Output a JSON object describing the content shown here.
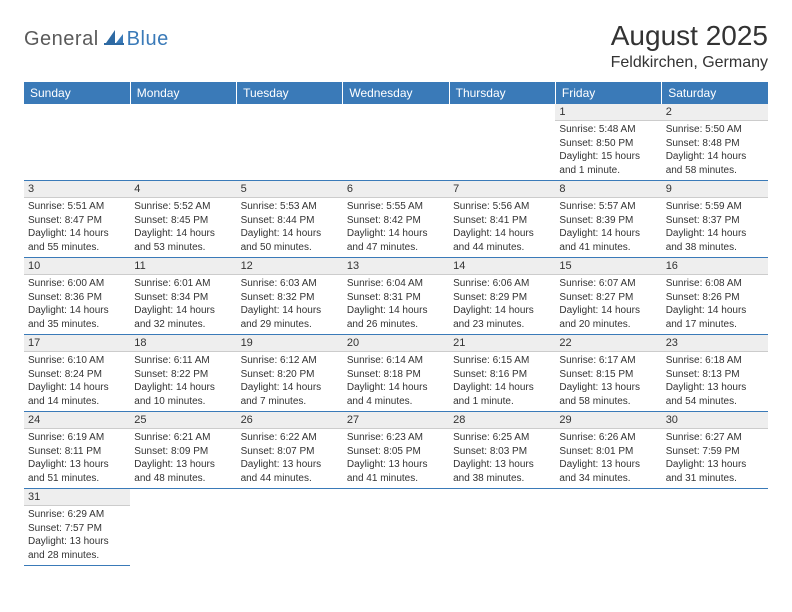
{
  "logo": {
    "general": "General",
    "blue": "Blue"
  },
  "title": "August 2025",
  "location": "Feldkirchen, Germany",
  "colors": {
    "header_bg": "#3a7ab8",
    "header_text": "#ffffff",
    "daynum_bg": "#eeeeee",
    "row_divider": "#3a7ab8",
    "text": "#333333",
    "logo_gray": "#5a5a5a",
    "logo_blue": "#3a7ab8"
  },
  "weekdays": [
    "Sunday",
    "Monday",
    "Tuesday",
    "Wednesday",
    "Thursday",
    "Friday",
    "Saturday"
  ],
  "first_weekday_index": 5,
  "days": [
    {
      "n": 1,
      "sunrise": "5:48 AM",
      "sunset": "8:50 PM",
      "daylight": "15 hours and 1 minute."
    },
    {
      "n": 2,
      "sunrise": "5:50 AM",
      "sunset": "8:48 PM",
      "daylight": "14 hours and 58 minutes."
    },
    {
      "n": 3,
      "sunrise": "5:51 AM",
      "sunset": "8:47 PM",
      "daylight": "14 hours and 55 minutes."
    },
    {
      "n": 4,
      "sunrise": "5:52 AM",
      "sunset": "8:45 PM",
      "daylight": "14 hours and 53 minutes."
    },
    {
      "n": 5,
      "sunrise": "5:53 AM",
      "sunset": "8:44 PM",
      "daylight": "14 hours and 50 minutes."
    },
    {
      "n": 6,
      "sunrise": "5:55 AM",
      "sunset": "8:42 PM",
      "daylight": "14 hours and 47 minutes."
    },
    {
      "n": 7,
      "sunrise": "5:56 AM",
      "sunset": "8:41 PM",
      "daylight": "14 hours and 44 minutes."
    },
    {
      "n": 8,
      "sunrise": "5:57 AM",
      "sunset": "8:39 PM",
      "daylight": "14 hours and 41 minutes."
    },
    {
      "n": 9,
      "sunrise": "5:59 AM",
      "sunset": "8:37 PM",
      "daylight": "14 hours and 38 minutes."
    },
    {
      "n": 10,
      "sunrise": "6:00 AM",
      "sunset": "8:36 PM",
      "daylight": "14 hours and 35 minutes."
    },
    {
      "n": 11,
      "sunrise": "6:01 AM",
      "sunset": "8:34 PM",
      "daylight": "14 hours and 32 minutes."
    },
    {
      "n": 12,
      "sunrise": "6:03 AM",
      "sunset": "8:32 PM",
      "daylight": "14 hours and 29 minutes."
    },
    {
      "n": 13,
      "sunrise": "6:04 AM",
      "sunset": "8:31 PM",
      "daylight": "14 hours and 26 minutes."
    },
    {
      "n": 14,
      "sunrise": "6:06 AM",
      "sunset": "8:29 PM",
      "daylight": "14 hours and 23 minutes."
    },
    {
      "n": 15,
      "sunrise": "6:07 AM",
      "sunset": "8:27 PM",
      "daylight": "14 hours and 20 minutes."
    },
    {
      "n": 16,
      "sunrise": "6:08 AM",
      "sunset": "8:26 PM",
      "daylight": "14 hours and 17 minutes."
    },
    {
      "n": 17,
      "sunrise": "6:10 AM",
      "sunset": "8:24 PM",
      "daylight": "14 hours and 14 minutes."
    },
    {
      "n": 18,
      "sunrise": "6:11 AM",
      "sunset": "8:22 PM",
      "daylight": "14 hours and 10 minutes."
    },
    {
      "n": 19,
      "sunrise": "6:12 AM",
      "sunset": "8:20 PM",
      "daylight": "14 hours and 7 minutes."
    },
    {
      "n": 20,
      "sunrise": "6:14 AM",
      "sunset": "8:18 PM",
      "daylight": "14 hours and 4 minutes."
    },
    {
      "n": 21,
      "sunrise": "6:15 AM",
      "sunset": "8:16 PM",
      "daylight": "14 hours and 1 minute."
    },
    {
      "n": 22,
      "sunrise": "6:17 AM",
      "sunset": "8:15 PM",
      "daylight": "13 hours and 58 minutes."
    },
    {
      "n": 23,
      "sunrise": "6:18 AM",
      "sunset": "8:13 PM",
      "daylight": "13 hours and 54 minutes."
    },
    {
      "n": 24,
      "sunrise": "6:19 AM",
      "sunset": "8:11 PM",
      "daylight": "13 hours and 51 minutes."
    },
    {
      "n": 25,
      "sunrise": "6:21 AM",
      "sunset": "8:09 PM",
      "daylight": "13 hours and 48 minutes."
    },
    {
      "n": 26,
      "sunrise": "6:22 AM",
      "sunset": "8:07 PM",
      "daylight": "13 hours and 44 minutes."
    },
    {
      "n": 27,
      "sunrise": "6:23 AM",
      "sunset": "8:05 PM",
      "daylight": "13 hours and 41 minutes."
    },
    {
      "n": 28,
      "sunrise": "6:25 AM",
      "sunset": "8:03 PM",
      "daylight": "13 hours and 38 minutes."
    },
    {
      "n": 29,
      "sunrise": "6:26 AM",
      "sunset": "8:01 PM",
      "daylight": "13 hours and 34 minutes."
    },
    {
      "n": 30,
      "sunrise": "6:27 AM",
      "sunset": "7:59 PM",
      "daylight": "13 hours and 31 minutes."
    },
    {
      "n": 31,
      "sunrise": "6:29 AM",
      "sunset": "7:57 PM",
      "daylight": "13 hours and 28 minutes."
    }
  ],
  "labels": {
    "sunrise": "Sunrise:",
    "sunset": "Sunset:",
    "daylight": "Daylight:"
  }
}
